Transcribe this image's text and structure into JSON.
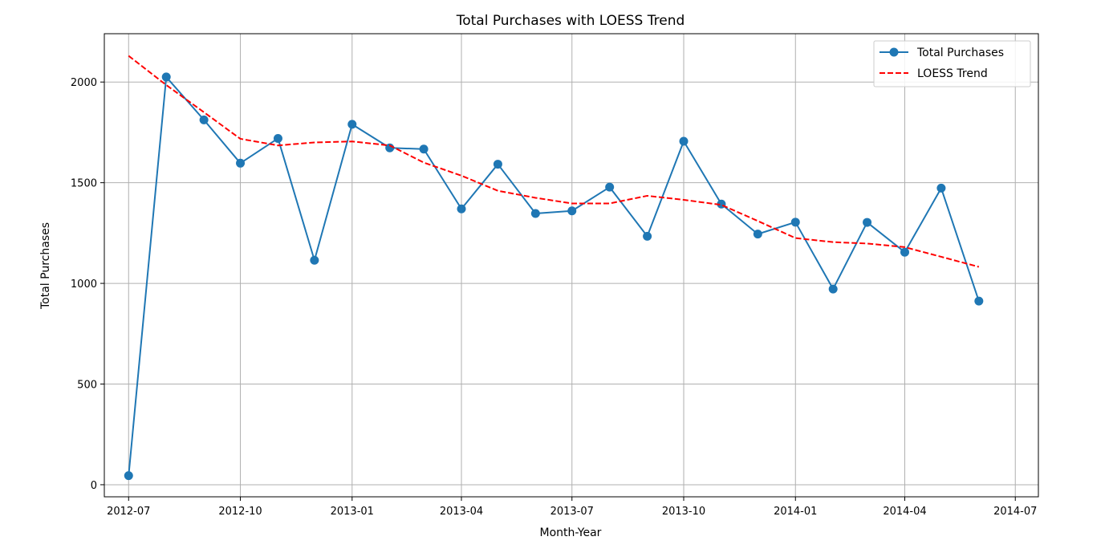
{
  "chart_data": {
    "type": "line",
    "title": "Total Purchases with LOESS Trend",
    "xlabel": "Month-Year",
    "ylabel": "Total Purchases",
    "ylim": [
      -60,
      2240
    ],
    "xlim": [
      "2012-06-11",
      "2014-07-20"
    ],
    "yticks": [
      0,
      500,
      1000,
      1500,
      2000
    ],
    "xticks": [
      {
        "date": "2012-07-01",
        "label": "2012-07"
      },
      {
        "date": "2012-10-01",
        "label": "2012-10"
      },
      {
        "date": "2013-01-01",
        "label": "2013-01"
      },
      {
        "date": "2013-04-01",
        "label": "2013-04"
      },
      {
        "date": "2013-07-01",
        "label": "2013-07"
      },
      {
        "date": "2013-10-01",
        "label": "2013-10"
      },
      {
        "date": "2014-01-01",
        "label": "2014-01"
      },
      {
        "date": "2014-04-01",
        "label": "2014-04"
      },
      {
        "date": "2014-07-01",
        "label": "2014-07"
      }
    ],
    "grid": true,
    "legend_position": "top-right",
    "x": [
      "2012-07-01",
      "2012-08-01",
      "2012-09-01",
      "2012-10-01",
      "2012-11-01",
      "2012-12-01",
      "2013-01-01",
      "2013-02-01",
      "2013-03-01",
      "2013-04-01",
      "2013-05-01",
      "2013-06-01",
      "2013-07-01",
      "2013-08-01",
      "2013-09-01",
      "2013-10-01",
      "2013-11-01",
      "2013-12-01",
      "2014-01-01",
      "2014-02-01",
      "2014-03-01",
      "2014-04-01",
      "2014-05-01",
      "2014-06-01"
    ],
    "series": [
      {
        "name": "Total Purchases",
        "style": "solid-marker",
        "color": "#1f77b4",
        "values": [
          45,
          2025,
          1812,
          1597,
          1720,
          1115,
          1790,
          1673,
          1667,
          1370,
          1592,
          1347,
          1360,
          1478,
          1234,
          1706,
          1394,
          1245,
          1304,
          972,
          1303,
          1155,
          1473,
          912
        ]
      },
      {
        "name": "LOESS Trend",
        "style": "dashed",
        "color": "#ff0000",
        "values": [
          2130,
          1985,
          1850,
          1718,
          1685,
          1700,
          1705,
          1685,
          1600,
          1535,
          1460,
          1425,
          1397,
          1397,
          1435,
          1415,
          1390,
          1310,
          1225,
          1205,
          1198,
          1180,
          1132,
          1082
        ]
      }
    ]
  }
}
